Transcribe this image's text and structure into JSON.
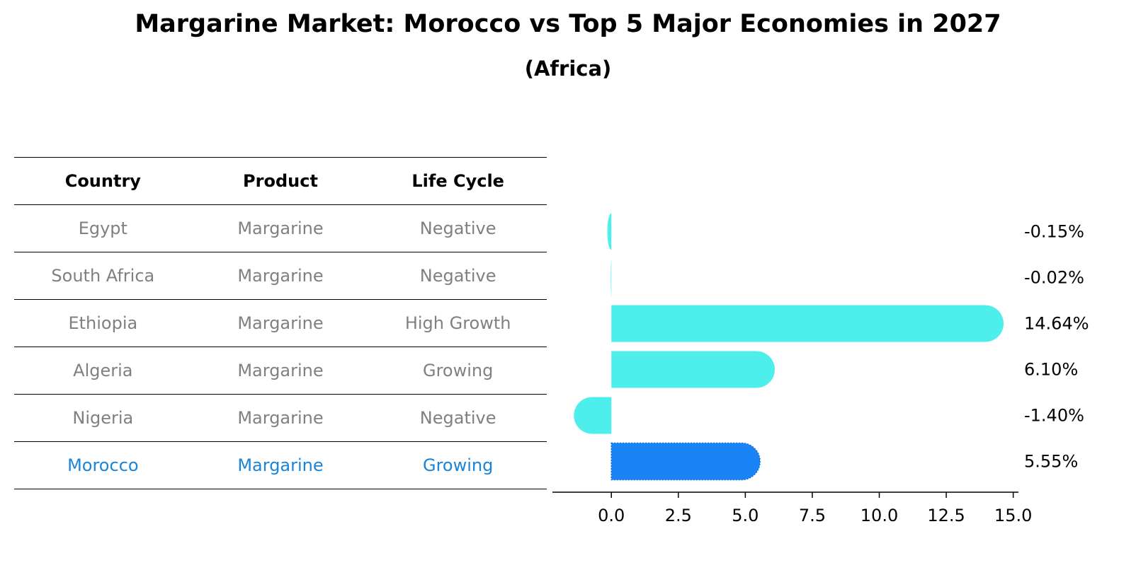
{
  "title": "Margarine Market: Morocco vs Top 5 Major Economies in 2027",
  "subtitle": "(Africa)",
  "table": {
    "headers": [
      "Country",
      "Product",
      "Life Cycle"
    ],
    "rows": [
      [
        "Egypt",
        "Margarine",
        "Negative"
      ],
      [
        "South Africa",
        "Margarine",
        "Negative"
      ],
      [
        "Ethiopia",
        "Margarine",
        "High Growth"
      ],
      [
        "Algeria",
        "Margarine",
        "Growing"
      ],
      [
        "Nigeria",
        "Margarine",
        "Negative"
      ],
      [
        "Morocco",
        "Margarine",
        "Growing"
      ]
    ],
    "highlight_row": "Morocco"
  },
  "colors": {
    "bar": "#4eeeec",
    "highlight_bar": "#1a84f7",
    "highlight_text": "#1a84d8",
    "muted_text": "#808080"
  },
  "chart_data": {
    "type": "bar",
    "orientation": "horizontal",
    "categories": [
      "Egypt",
      "South Africa",
      "Ethiopia",
      "Algeria",
      "Nigeria",
      "Morocco"
    ],
    "values": [
      -0.15,
      -0.02,
      14.64,
      6.1,
      -1.4,
      5.55
    ],
    "value_labels": [
      "-0.15%",
      "-0.02%",
      "14.64%",
      "6.10%",
      "-1.40%",
      "5.55%"
    ],
    "highlight": "Morocco",
    "xlim": [
      -2.2,
      15.3
    ],
    "xticks": [
      0.0,
      2.5,
      5.0,
      7.5,
      10.0,
      12.5,
      15.0
    ],
    "xtick_labels": [
      "0.0",
      "2.5",
      "5.0",
      "7.5",
      "10.0",
      "12.5",
      "15.0"
    ],
    "grid": false
  }
}
